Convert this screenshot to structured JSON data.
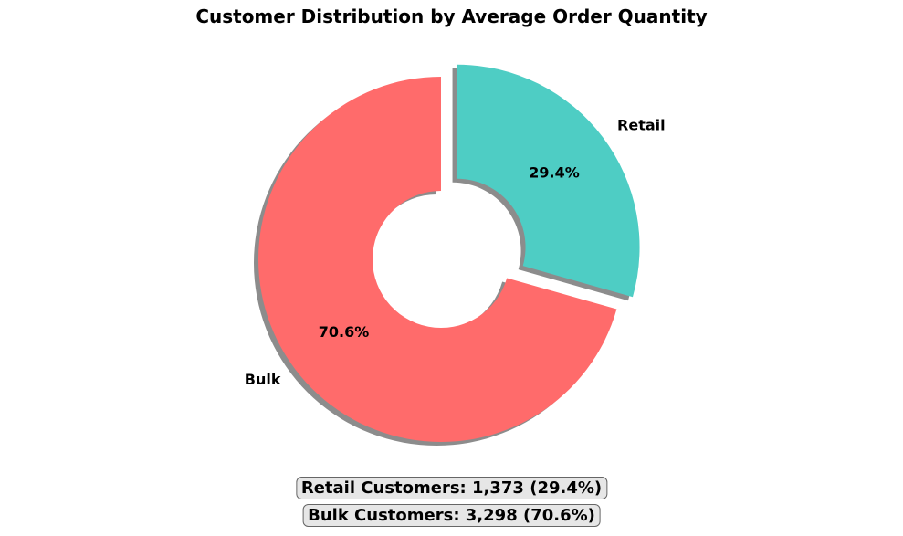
{
  "chart_data": {
    "type": "pie",
    "style": "donut",
    "title": "Customer Distribution by Average Order Quantity",
    "slices": [
      {
        "label": "Retail",
        "value": 1373,
        "pct_label": "29.4%",
        "color": "#4ECDC4",
        "exploded": true
      },
      {
        "label": "Bulk",
        "value": 3298,
        "pct_label": "70.6%",
        "color": "#FF6B6B",
        "exploded": false
      }
    ],
    "shadow": true,
    "start": "top, counter-clockwise from Bulk",
    "summary": [
      "Retail Customers: 1,373 (29.4%)",
      "Bulk Customers: 3,298 (70.6%)"
    ]
  }
}
